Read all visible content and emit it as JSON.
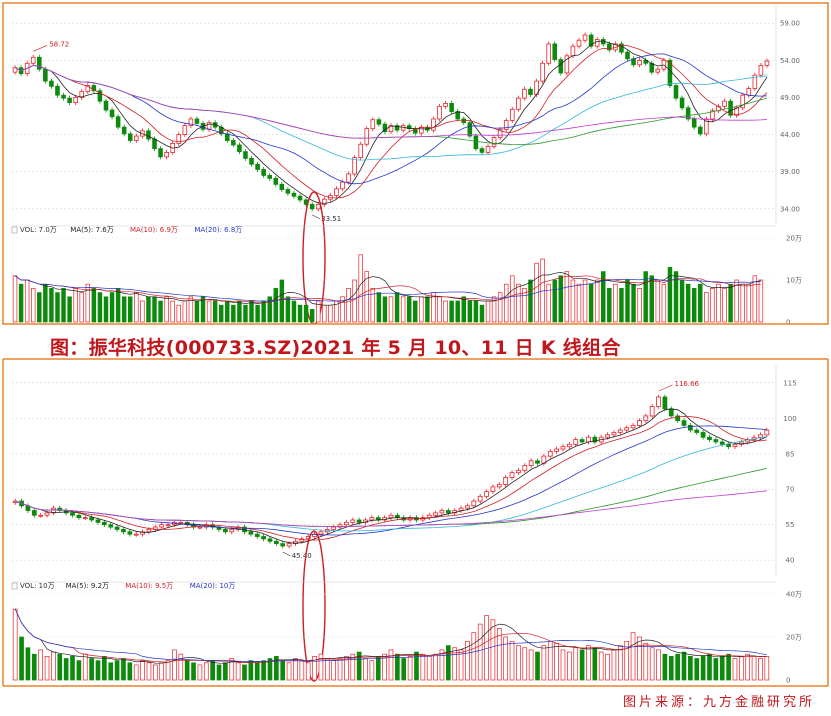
{
  "caption": "图：振华科技(000733.SZ)2021 年 5 月 10、11 日 K 线组合",
  "source": "图片来源：九方金融研究所",
  "colors": {
    "up": "#e8222a",
    "down": "#0c8a0c",
    "ma5": "#222222",
    "ma10": "#d11f26",
    "ma20": "#2437c8",
    "ma60": "#35b6dc",
    "ma120": "#2a9a2a",
    "ma250": "#c03ad0",
    "annot": "#cc1f1f",
    "frame": "#e9822c"
  },
  "chart_data": [
    {
      "type": "candlestick",
      "title": "",
      "price_ticks": [
        "59.00",
        "54.00",
        "49.00",
        "44.00",
        "39.00",
        "34.00"
      ],
      "price_ylim": [
        32.5,
        60.5
      ],
      "high_label": "58.72",
      "low_label": "33.51",
      "closes": [
        53.0,
        52.2,
        53.6,
        54.4,
        52.8,
        51.2,
        50.5,
        49.3,
        48.9,
        48.3,
        49.0,
        49.8,
        50.6,
        49.9,
        48.5,
        47.3,
        46.4,
        45.0,
        44.1,
        43.2,
        43.8,
        44.5,
        43.4,
        42.1,
        41.0,
        41.6,
        42.8,
        44.0,
        45.2,
        46.1,
        45.5,
        44.7,
        45.6,
        45.0,
        44.1,
        43.2,
        42.6,
        41.7,
        40.8,
        40.0,
        39.3,
        38.5,
        38.1,
        37.3,
        36.6,
        36.1,
        35.7,
        35.2,
        34.6,
        34.0,
        34.6,
        35.3,
        35.8,
        36.7,
        37.6,
        38.7,
        40.9,
        42.7,
        44.8,
        46.0,
        45.4,
        44.4,
        45.2,
        44.6,
        45.2,
        44.8,
        44.2,
        45.0,
        44.6,
        46.1,
        47.8,
        48.2,
        47.1,
        46.1,
        45.6,
        43.8,
        42.1,
        41.6,
        42.4,
        43.6,
        44.7,
        45.9,
        47.4,
        48.9,
        50.1,
        49.4,
        51.2,
        53.6,
        56.2,
        54.1,
        52.3,
        54.6,
        55.9,
        56.7,
        57.4,
        55.9,
        56.8,
        56.2,
        55.4,
        56.2,
        55.1,
        54.2,
        53.4,
        54.0,
        53.6,
        52.4,
        52.8,
        54.0,
        50.6,
        48.9,
        47.6,
        46.1,
        45.0,
        44.1,
        46.1,
        47.2,
        47.8,
        48.5,
        46.6,
        47.6,
        49.3,
        50.2,
        52.0,
        53.3,
        53.9
      ],
      "ma_series": [
        {
          "name": "MA5"
        },
        {
          "name": "MA10"
        },
        {
          "name": "MA20"
        },
        {
          "name": "MA60"
        },
        {
          "name": "MA120"
        },
        {
          "name": "MA250"
        }
      ],
      "volume": {
        "legend": [
          "VOL: 7.0万",
          "MA(5): 7.6万",
          "MA(10): 6.9万",
          "MA(20): 6.8万"
        ],
        "ticks": [
          "20万",
          "10万",
          "0"
        ],
        "ylim": [
          0,
          20
        ],
        "values": [
          11,
          9,
          10,
          8,
          7,
          9,
          8,
          7,
          8,
          6,
          8,
          7,
          9,
          8,
          7,
          6,
          7,
          8,
          6,
          6,
          7,
          5,
          6,
          6,
          5,
          6,
          5,
          4,
          5,
          6,
          5,
          6,
          5,
          5,
          4,
          5,
          4,
          5,
          4,
          5,
          4,
          5,
          6,
          8,
          10,
          6,
          5,
          4,
          4,
          3,
          5,
          4,
          4,
          5,
          6,
          8,
          10,
          16,
          12,
          8,
          7,
          6,
          6,
          7,
          6,
          6,
          5,
          6,
          6,
          7,
          6,
          5,
          5,
          5,
          6,
          5,
          5,
          4,
          5,
          6,
          7,
          9,
          11,
          9,
          8,
          10,
          14,
          15,
          9,
          10,
          11,
          12,
          10,
          9,
          10,
          9,
          10,
          12,
          8,
          9,
          8,
          10,
          9,
          8,
          12,
          11,
          10,
          9,
          13,
          12,
          10,
          9,
          8,
          9,
          7,
          8,
          9,
          8,
          9,
          10,
          9,
          9,
          11,
          10
        ]
      }
    },
    {
      "type": "candlestick",
      "title": "",
      "price_ticks": [
        "115",
        "100",
        "85",
        "70",
        "55",
        "40"
      ],
      "price_ylim": [
        35,
        120
      ],
      "high_label": "116.66",
      "low_label": "45.40",
      "closes": [
        65,
        63,
        61,
        59,
        59,
        60,
        62,
        61,
        60,
        59,
        58,
        58,
        57,
        56,
        55,
        54,
        53,
        52,
        51,
        51,
        52,
        53,
        54,
        55,
        55,
        56,
        56,
        55,
        54,
        54,
        55,
        54,
        53,
        52,
        53,
        54,
        52,
        51,
        50,
        49,
        48,
        47,
        46,
        47,
        48,
        49,
        50,
        51,
        52,
        53,
        54,
        55,
        56,
        57,
        56,
        57,
        58,
        57,
        58,
        59,
        58,
        57,
        58,
        57,
        58,
        59,
        60,
        61,
        60,
        61,
        62,
        63,
        65,
        67,
        69,
        71,
        72,
        75,
        77,
        78,
        80,
        82,
        81,
        84,
        86,
        87,
        88,
        89,
        91,
        90,
        92,
        90,
        92,
        93,
        94,
        95,
        96,
        97,
        99,
        101,
        105,
        109,
        104,
        101,
        99,
        97,
        95,
        94,
        92,
        91,
        90,
        89,
        88,
        89,
        90,
        91,
        92,
        93,
        95
      ],
      "ma_series": [
        {
          "name": "MA5"
        },
        {
          "name": "MA10"
        },
        {
          "name": "MA20"
        },
        {
          "name": "MA60"
        },
        {
          "name": "MA120"
        },
        {
          "name": "MA250"
        }
      ],
      "volume": {
        "legend": [
          "VOL: 10万",
          "MA(5): 9.2万",
          "MA(10): 9.5万",
          "MA(20): 10万"
        ],
        "ticks": [
          "40万",
          "20万",
          "0"
        ],
        "ylim": [
          0,
          40
        ],
        "values": [
          33,
          20,
          15,
          12,
          14,
          11,
          13,
          12,
          10,
          11,
          9,
          12,
          10,
          9,
          11,
          8,
          9,
          10,
          8,
          7,
          9,
          8,
          7,
          8,
          9,
          14,
          12,
          9,
          8,
          7,
          8,
          9,
          7,
          8,
          10,
          8,
          7,
          9,
          8,
          9,
          10,
          11,
          9,
          8,
          10,
          9,
          8,
          11,
          12,
          10,
          9,
          10,
          11,
          12,
          13,
          10,
          9,
          11,
          12,
          14,
          12,
          10,
          11,
          13,
          12,
          11,
          12,
          14,
          16,
          15,
          14,
          18,
          22,
          26,
          30,
          28,
          24,
          20,
          18,
          16,
          15,
          14,
          13,
          16,
          18,
          17,
          14,
          13,
          15,
          14,
          16,
          15,
          13,
          12,
          14,
          16,
          18,
          22,
          20,
          17,
          15,
          14,
          12,
          11,
          12,
          13,
          11,
          10,
          11,
          12,
          10,
          11,
          12,
          10,
          11,
          12,
          11,
          10,
          11
        ]
      }
    }
  ]
}
